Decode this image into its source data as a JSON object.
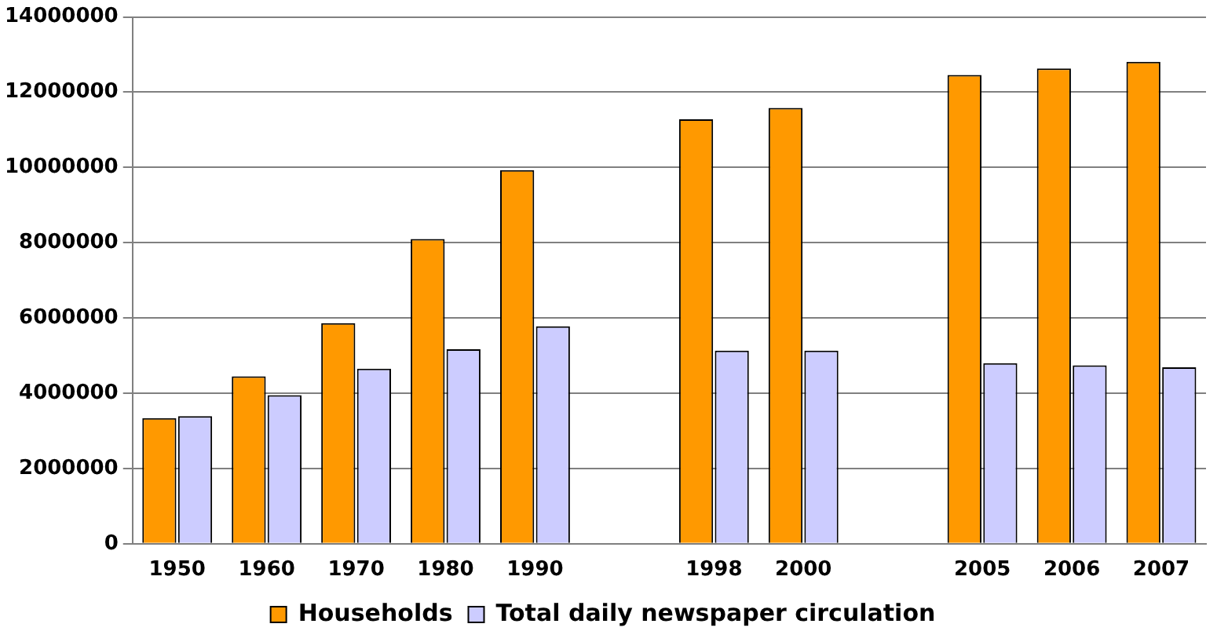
{
  "chart_data": {
    "type": "bar",
    "categories": [
      "1950",
      "1960",
      "1970",
      "1980",
      "1990",
      null,
      "1998",
      "2000",
      null,
      "2005",
      "2006",
      "2007"
    ],
    "series": [
      {
        "name": "Households",
        "color": "#ff9900",
        "values": [
          3340000,
          4450000,
          5860000,
          8100000,
          9930000,
          null,
          11280000,
          11580000,
          null,
          12460000,
          12630000,
          12810000
        ]
      },
      {
        "name": "Total daily newspaper circulation",
        "color": "#ccccff",
        "values": [
          3390000,
          3950000,
          4650000,
          5170000,
          5780000,
          null,
          5130000,
          5130000,
          null,
          4800000,
          4740000,
          4690000
        ]
      }
    ],
    "ylim": [
      0,
      14000000
    ],
    "yticks": [
      0,
      2000000,
      4000000,
      6000000,
      8000000,
      10000000,
      12000000,
      14000000
    ],
    "grid": "y",
    "legend": "bottom"
  }
}
